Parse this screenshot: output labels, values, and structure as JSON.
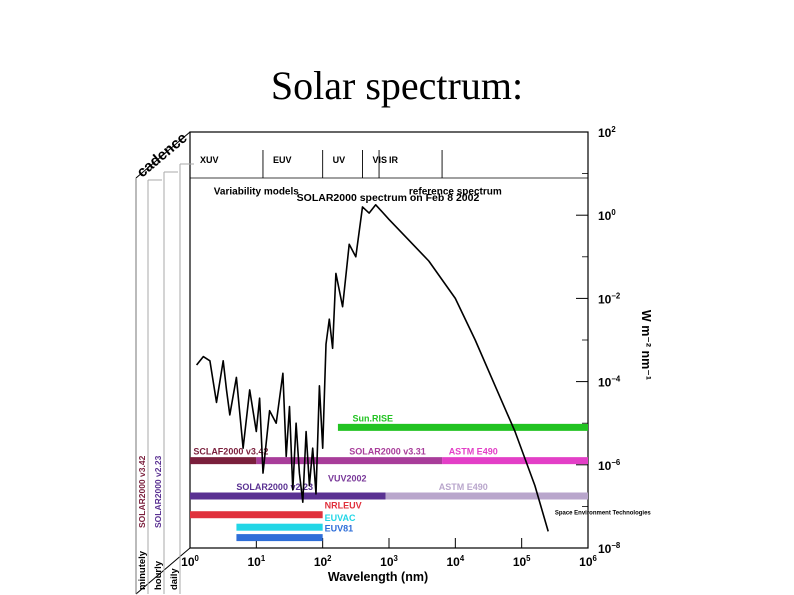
{
  "slide": {
    "title": "Solar spectrum:"
  },
  "chart_data": {
    "type": "line",
    "title": "SOLAR2000 spectrum on Feb 8 2002",
    "xlabel": "Wavelength (nm)",
    "ylabel": "W m⁻² nm⁻¹",
    "x_scale": "log",
    "y_scale": "log",
    "xlim_log10": [
      0,
      6
    ],
    "ylim_log10": [
      -8,
      2
    ],
    "x_ticks": [
      {
        "exp": 0,
        "label": "10",
        "sup": "0"
      },
      {
        "exp": 1,
        "label": "10",
        "sup": "1"
      },
      {
        "exp": 2,
        "label": "10",
        "sup": "2"
      },
      {
        "exp": 3,
        "label": "10",
        "sup": "3"
      },
      {
        "exp": 4,
        "label": "10",
        "sup": "4"
      },
      {
        "exp": 5,
        "label": "10",
        "sup": "5"
      },
      {
        "exp": 6,
        "label": "10",
        "sup": "6"
      }
    ],
    "y_ticks": [
      {
        "exp": 2,
        "label": "10",
        "sup": "2"
      },
      {
        "exp": 0,
        "label": "10",
        "sup": "0"
      },
      {
        "exp": -2,
        "label": "10",
        "sup": "−2"
      },
      {
        "exp": -4,
        "label": "10",
        "sup": "−4"
      },
      {
        "exp": -6,
        "label": "10",
        "sup": "−6"
      },
      {
        "exp": -8,
        "label": "10",
        "sup": "−8"
      }
    ],
    "bands": [
      {
        "label": "XUV",
        "from": 0,
        "to": 1.1
      },
      {
        "label": "EUV",
        "from": 1.1,
        "to": 2.0
      },
      {
        "label": "UV",
        "from": 2.0,
        "to": 2.6
      },
      {
        "label": "VIS",
        "from": 2.6,
        "to": 2.85
      },
      {
        "label": "IR",
        "from": 2.85,
        "to": 3.8
      }
    ],
    "annotations": [
      {
        "text": "Variability models",
        "x": 1.0,
        "y": 0.5
      },
      {
        "text": "reference spectrum",
        "x": 4.0,
        "y": 0.5
      },
      {
        "text": "Space Environment Technologies",
        "x": 5.5,
        "y": -7.2
      }
    ],
    "series": [
      {
        "name": "SOLAR2000 reference spectrum",
        "log_x": [
          0.1,
          0.2,
          0.3,
          0.4,
          0.5,
          0.55,
          0.6,
          0.7,
          0.8,
          0.9,
          1.0,
          1.05,
          1.1,
          1.2,
          1.3,
          1.4,
          1.45,
          1.5,
          1.55,
          1.6,
          1.65,
          1.7,
          1.75,
          1.8,
          1.85,
          1.9,
          1.95,
          2.0,
          2.05,
          2.1,
          2.15,
          2.2,
          2.3,
          2.4,
          2.5,
          2.6,
          2.7,
          2.8,
          3.0,
          3.3,
          3.6,
          4.0,
          4.3,
          4.6,
          4.9,
          5.2,
          5.4
        ],
        "log_y": [
          -3.6,
          -3.4,
          -3.5,
          -4.5,
          -3.5,
          -4.2,
          -4.8,
          -3.9,
          -5.6,
          -4.2,
          -5.2,
          -4.4,
          -6.2,
          -4.7,
          -5.0,
          -3.8,
          -5.8,
          -4.6,
          -6.6,
          -5.0,
          -6.2,
          -6.9,
          -5.2,
          -6.5,
          -5.6,
          -6.7,
          -4.1,
          -5.6,
          -3.1,
          -2.5,
          -3.2,
          -1.4,
          -2.2,
          -0.7,
          -1.0,
          0.2,
          0.05,
          0.25,
          -0.1,
          -0.6,
          -1.1,
          -2.0,
          -3.0,
          -4.1,
          -5.2,
          -6.5,
          -7.6
        ]
      }
    ],
    "bars": [
      {
        "name": "Sun.RISE",
        "label": "Sun.RISE",
        "color": "#22c322",
        "from": 2.23,
        "to": 6.0,
        "y": -5.1,
        "label_x": 2.45
      },
      {
        "name": "SCLAF2000 v3.42",
        "label": "SCLAF2000 v3.42",
        "color": "#7a1f3c",
        "from": 0.0,
        "to": 1.0,
        "y": -5.9,
        "label_x": 0.05
      },
      {
        "name": "SOLAR2000 v3.31",
        "label": "SOLAR2000 v3.31",
        "color": "#a83d9a",
        "from": 1.0,
        "to": 3.8,
        "y": -5.9,
        "label_x": 2.4
      },
      {
        "name": "ASTM E490 (v3.31)",
        "label": "ASTM E490",
        "color": "#e33fc7",
        "from": 3.8,
        "to": 6.0,
        "y": -5.9,
        "label_x": 3.9
      },
      {
        "name": "SOLAR2000 v2.23",
        "label": "SOLAR2000 v2.23",
        "color": "#5a3192",
        "from": 0.0,
        "to": 2.95,
        "y": -6.75,
        "label_x": 0.7
      },
      {
        "name": "ASTM E490 (v2.23)",
        "label": "ASTM E490",
        "color": "#b9a6cc",
        "from": 2.95,
        "to": 6.0,
        "y": -6.75,
        "label_x": 3.75
      },
      {
        "name": "NRLEUV",
        "label": "NRLEUV",
        "color": "#e0313c",
        "from": 0.0,
        "to": 2.0,
        "y": -7.2,
        "label_x": 2.03
      },
      {
        "name": "EUVAC",
        "label": "EUVAC",
        "color": "#22d6e6",
        "from": 0.7,
        "to": 2.0,
        "y": -7.5,
        "label_x": 2.03
      },
      {
        "name": "EUV81",
        "label": "EUV81",
        "color": "#2e6ed8",
        "from": 0.7,
        "to": 2.0,
        "y": -7.75,
        "label_x": 2.03
      }
    ],
    "extra_labels": [
      {
        "text": "VUV2002",
        "color": "#7a3a9a",
        "x": 2.08,
        "y": -6.4
      }
    ],
    "cadence": {
      "title": "cadence",
      "rows": [
        {
          "label": "minutely",
          "model": "SOLAR2000 v3.42",
          "model_color": "#7a1f3c"
        },
        {
          "label": "hourly",
          "model": "SOLAR2000 v2.23",
          "model_color": "#5a3192"
        },
        {
          "label": "daily",
          "model": "",
          "model_color": "#000000"
        }
      ]
    }
  }
}
